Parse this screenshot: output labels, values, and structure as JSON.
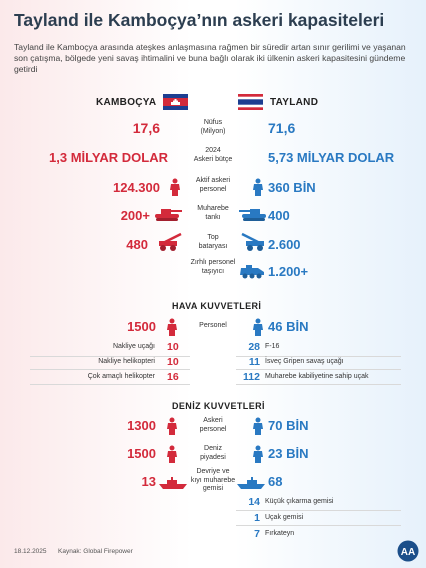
{
  "title": "Tayland ile Kamboçya’nın askeri kapasiteleri",
  "subtitle": "Tayland ile Kamboçya arasında ateşkes anlaşmasına rağmen bir süredir artan sınır gerilimi ve yaşanan son çatışma, bölgede yeni savaş ihtimalini ve buna bağlı olarak iki ülkenin askeri kapasitesini gündeme getirdi",
  "left_country": "KAMBOÇYA",
  "right_country": "TAYLAND",
  "colors": {
    "cambodia": "#d32a3b",
    "thailand": "#2979c2"
  },
  "general": {
    "nufus": {
      "label1": "Nüfus",
      "label2": "(Milyon)",
      "left": "17,6",
      "right": "71,6"
    },
    "butce": {
      "label1": "2024",
      "label2": "Askeri bütçe",
      "left": "1,3 MİLYAR DOLAR",
      "right": "5,73 MİLYAR DOLAR"
    },
    "personel": {
      "label1": "Aktif askeri",
      "label2": "personel",
      "left": "124.300",
      "right": "360 BİN",
      "icon": "soldier-icon"
    },
    "tank": {
      "label1": "Muharebe",
      "label2": "tankı",
      "left": "200+",
      "right": "400",
      "icon": "tank-icon"
    },
    "top": {
      "label1": "Top",
      "label2": "bataryası",
      "left": "480",
      "right": "2.600",
      "icon": "artillery-icon"
    },
    "zirhli": {
      "label1": "Zırhlı personel",
      "label2": "taşıyıcı",
      "right": "1.200+",
      "icon": "apc-icon"
    }
  },
  "air": {
    "title": "HAVA KUVVETLERİ",
    "personel": {
      "label": "Personel",
      "left": "1500",
      "right": "46 BİN"
    },
    "left_items": [
      {
        "label": "Nakliye uçağı",
        "value": "10"
      },
      {
        "label": "Nakliye helikopteri",
        "value": "10"
      },
      {
        "label": "Çok amaçlı helikopter",
        "value": "16"
      }
    ],
    "right_items": [
      {
        "value": "28",
        "label": "F-16"
      },
      {
        "value": "11",
        "label": "İsveç Gripen savaş uçağı"
      },
      {
        "value": "112",
        "label": "Muharebe kabiliyetine sahip uçak"
      }
    ]
  },
  "navy": {
    "title": "DENİZ KUVVETLERİ",
    "personel": {
      "label1": "Askeri",
      "label2": "personel",
      "left": "1300",
      "right": "70 BİN"
    },
    "piyade": {
      "label1": "Deniz",
      "label2": "piyadesi",
      "left": "1500",
      "right": "23 BİN"
    },
    "gemi": {
      "label1": "Devriye ve",
      "label2": "kıyı muharebe",
      "label3": "gemisi",
      "left": "13",
      "right": "68"
    },
    "right_items": [
      {
        "value": "14",
        "label": "Küçük çıkarma gemisi"
      },
      {
        "value": "1",
        "label": "Uçak gemisi"
      },
      {
        "value": "7",
        "label": "Fırkateyn"
      }
    ]
  },
  "footer": {
    "date": "18.12.2025",
    "source": "Kaynak: Global Firepower"
  },
  "logo_text": "AA"
}
